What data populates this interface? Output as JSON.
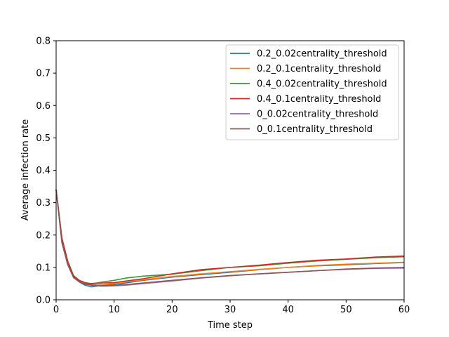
{
  "chart_data": {
    "type": "line",
    "title": "",
    "xlabel": "Time step",
    "ylabel": "Average infection rate",
    "xlim": [
      0,
      60
    ],
    "ylim": [
      0,
      0.8
    ],
    "xticks": [
      0,
      10,
      20,
      30,
      40,
      50,
      60
    ],
    "yticks": [
      0.0,
      0.1,
      0.2,
      0.3,
      0.4,
      0.5,
      0.6,
      0.7,
      0.8
    ],
    "xtick_labels": [
      "0",
      "10",
      "20",
      "30",
      "40",
      "50",
      "60"
    ],
    "ytick_labels": [
      "0.0",
      "0.1",
      "0.2",
      "0.3",
      "0.4",
      "0.5",
      "0.6",
      "0.7",
      "0.8"
    ],
    "grid": false,
    "legend_position": "top-right",
    "x": [
      0,
      1,
      2,
      3,
      4,
      5,
      6,
      7,
      8,
      10,
      12,
      15,
      20,
      25,
      30,
      35,
      40,
      45,
      50,
      55,
      60
    ],
    "series": [
      {
        "name": "0.2_0.02centrality_threshold",
        "color": "#1f77b4",
        "values": [
          0.34,
          0.18,
          0.11,
          0.07,
          0.055,
          0.045,
          0.04,
          0.042,
          0.045,
          0.048,
          0.052,
          0.06,
          0.07,
          0.078,
          0.085,
          0.093,
          0.1,
          0.105,
          0.108,
          0.112,
          0.115
        ]
      },
      {
        "name": "0.2_0.1centrality_threshold",
        "color": "#ff7f0e",
        "values": [
          0.34,
          0.185,
          0.115,
          0.072,
          0.058,
          0.05,
          0.047,
          0.046,
          0.047,
          0.05,
          0.055,
          0.062,
          0.072,
          0.08,
          0.087,
          0.094,
          0.1,
          0.106,
          0.11,
          0.113,
          0.116
        ]
      },
      {
        "name": "0.4_0.02centrality_threshold",
        "color": "#2ca02c",
        "values": [
          0.34,
          0.19,
          0.12,
          0.075,
          0.06,
          0.053,
          0.05,
          0.052,
          0.055,
          0.06,
          0.067,
          0.073,
          0.079,
          0.09,
          0.1,
          0.105,
          0.113,
          0.12,
          0.125,
          0.13,
          0.133
        ]
      },
      {
        "name": "0.4_0.1centrality_threshold",
        "color": "#d62728",
        "values": [
          0.34,
          0.19,
          0.118,
          0.073,
          0.06,
          0.052,
          0.05,
          0.051,
          0.052,
          0.053,
          0.058,
          0.065,
          0.08,
          0.093,
          0.1,
          0.107,
          0.115,
          0.122,
          0.126,
          0.132,
          0.135
        ]
      },
      {
        "name": "0_0.02centrality_threshold",
        "color": "#9467bd",
        "values": [
          0.34,
          0.175,
          0.108,
          0.068,
          0.055,
          0.048,
          0.045,
          0.043,
          0.042,
          0.043,
          0.045,
          0.05,
          0.058,
          0.067,
          0.074,
          0.08,
          0.085,
          0.09,
          0.094,
          0.097,
          0.098
        ]
      },
      {
        "name": "0_0.1centrality_threshold",
        "color": "#8c564b",
        "values": [
          0.34,
          0.18,
          0.11,
          0.07,
          0.056,
          0.048,
          0.046,
          0.044,
          0.043,
          0.045,
          0.047,
          0.052,
          0.06,
          0.068,
          0.075,
          0.08,
          0.085,
          0.09,
          0.095,
          0.098,
          0.1
        ]
      }
    ]
  }
}
